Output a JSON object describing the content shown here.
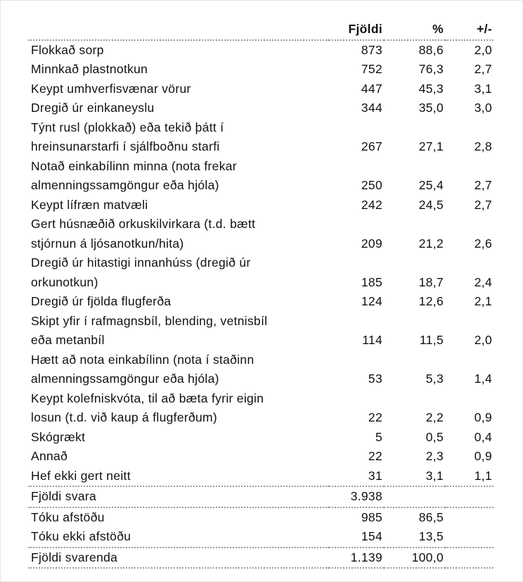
{
  "table": {
    "columns": [
      "Fjöldi",
      "%",
      "+/-"
    ],
    "sections": [
      [
        {
          "label": [
            "Flokkað sorp"
          ],
          "cells": [
            "873",
            "88,6",
            "2,0"
          ]
        },
        {
          "label": [
            "Minnkað plastnotkun"
          ],
          "cells": [
            "752",
            "76,3",
            "2,7"
          ]
        },
        {
          "label": [
            "Keypt umhverfisvænar vörur"
          ],
          "cells": [
            "447",
            "45,3",
            "3,1"
          ]
        },
        {
          "label": [
            "Dregið úr einkaneyslu"
          ],
          "cells": [
            "344",
            "35,0",
            "3,0"
          ]
        },
        {
          "label": [
            "Týnt rusl (plokkað) eða tekið þátt í",
            "hreinsunarstarfi í sjálfboðnu starfi"
          ],
          "cells": [
            "267",
            "27,1",
            "2,8"
          ]
        },
        {
          "label": [
            "Notað einkabílinn minna (nota frekar",
            "almenningssamgöngur eða hjóla)"
          ],
          "cells": [
            "250",
            "25,4",
            "2,7"
          ]
        },
        {
          "label": [
            "Keypt lífræn matvæli"
          ],
          "cells": [
            "242",
            "24,5",
            "2,7"
          ]
        },
        {
          "label": [
            "Gert húsnæðið orkuskilvirkara (t.d. bætt",
            "stjórnun á ljósanotkun/hita)"
          ],
          "cells": [
            "209",
            "21,2",
            "2,6"
          ]
        },
        {
          "label": [
            "Dregið úr hitastigi innanhúss (dregið úr",
            "orkunotkun)"
          ],
          "cells": [
            "185",
            "18,7",
            "2,4"
          ]
        },
        {
          "label": [
            "Dregið úr fjölda flugferða"
          ],
          "cells": [
            "124",
            "12,6",
            "2,1"
          ]
        },
        {
          "label": [
            "Skipt yfir í rafmagnsbíl, blending, vetnisbíl",
            "eða metanbíl"
          ],
          "cells": [
            "114",
            "11,5",
            "2,0"
          ]
        },
        {
          "label": [
            "Hætt að nota einkabílinn (nota í staðinn",
            "almenningssamgöngur eða hjóla)"
          ],
          "cells": [
            "53",
            "5,3",
            "1,4"
          ]
        },
        {
          "label": [
            "Keypt kolefniskvóta, til að bæta fyrir eigin",
            "losun (t.d. við kaup á flugferðum)"
          ],
          "cells": [
            "22",
            "2,2",
            "0,9"
          ]
        },
        {
          "label": [
            "Skógrækt"
          ],
          "cells": [
            "5",
            "0,5",
            "0,4"
          ]
        },
        {
          "label": [
            "Annað"
          ],
          "cells": [
            "22",
            "2,3",
            "0,9"
          ]
        },
        {
          "label": [
            "Hef ekki gert neitt"
          ],
          "cells": [
            "31",
            "3,1",
            "1,1"
          ]
        }
      ],
      [
        {
          "label": [
            "Fjöldi svara"
          ],
          "cells": [
            "3.938"
          ]
        }
      ],
      [
        {
          "label": [
            "Tóku afstöðu"
          ],
          "cells": [
            "985",
            "86,5"
          ]
        },
        {
          "label": [
            "Tóku ekki afstöðu"
          ],
          "cells": [
            "154",
            "13,5"
          ]
        }
      ],
      [
        {
          "label": [
            "Fjöldi svarenda"
          ],
          "cells": [
            "1.139",
            "100,0"
          ]
        }
      ]
    ]
  }
}
